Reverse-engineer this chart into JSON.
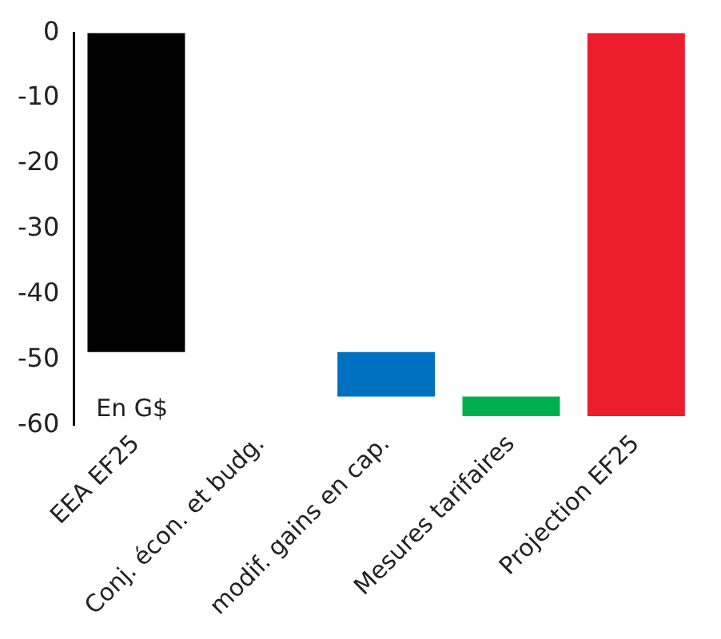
{
  "chart_data": {
    "type": "bar",
    "categories": [
      "EEA EF25",
      "Conj. écon. et budg.",
      "modif. gains en cap.",
      "Mesures tarifaires",
      "Projection EF25"
    ],
    "values": [
      -48.8,
      null,
      -6.8,
      -3.0,
      -58.6
    ],
    "base": [
      0,
      null,
      -48.8,
      -55.6,
      0
    ],
    "colors": [
      "#000000",
      "#ffffff",
      "#0070c0",
      "#00b050",
      "#ee1d2e"
    ],
    "ylim": [
      -60,
      0
    ],
    "yticks": [
      0,
      -10,
      -20,
      -30,
      -40,
      -50,
      -60
    ],
    "grid": false,
    "legend": false,
    "annotations": [
      "En G$"
    ]
  }
}
